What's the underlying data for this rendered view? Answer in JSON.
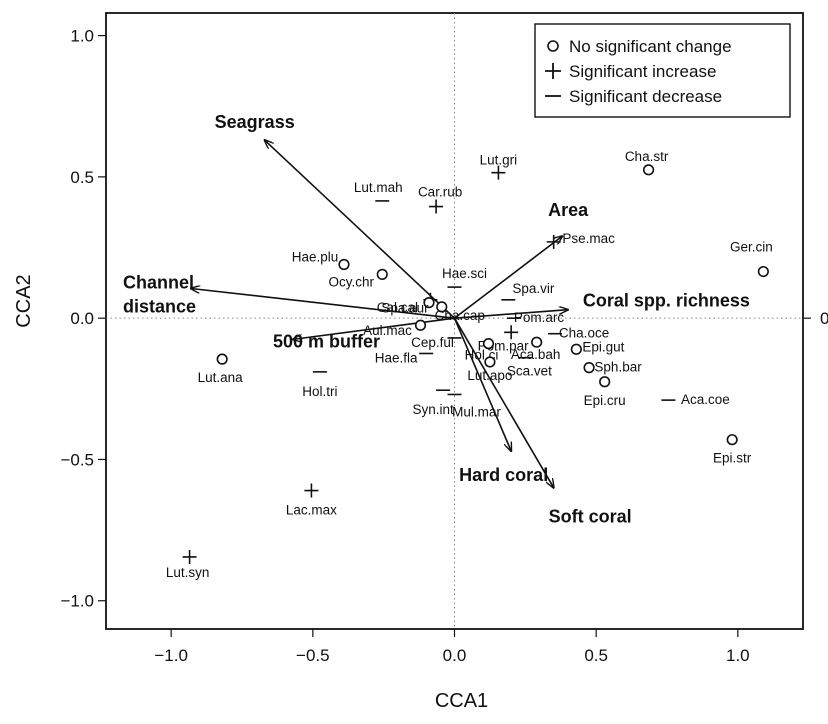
{
  "chart_data": {
    "type": "scatter",
    "xlabel": "CCA1",
    "ylabel": "CCA2",
    "xlim": [
      -1.23,
      1.23
    ],
    "ylim": [
      -1.1,
      1.08
    ],
    "x_ticks": [
      -1.0,
      -0.5,
      0.0,
      0.5,
      1.0
    ],
    "y_ticks": [
      -1.0,
      -0.5,
      0.0,
      0.5,
      1.0
    ],
    "x_tick_labels": [
      "−1.0",
      "−0.5",
      "0.0",
      "0.5",
      "1.0"
    ],
    "y_tick_labels": [
      "−1.0",
      "−0.5",
      "0.0",
      "0.5",
      "1.0"
    ],
    "right_axis_tick": {
      "y": 0.0,
      "label": "0"
    },
    "reference_lines": {
      "x": 0,
      "y": 0,
      "style": "dotted"
    },
    "legend": {
      "position": "top-right",
      "entries": [
        {
          "symbol": "circle",
          "label": "No significant change"
        },
        {
          "symbol": "plus",
          "label": "Significant increase"
        },
        {
          "symbol": "minus",
          "label": "Significant decrease"
        }
      ]
    },
    "species": [
      {
        "name": "Lut.gri",
        "x": 0.155,
        "y": 0.515,
        "status": "plus"
      },
      {
        "name": "Cha.str",
        "x": 0.685,
        "y": 0.525,
        "status": "circle"
      },
      {
        "name": "Lut.mah",
        "x": -0.255,
        "y": 0.415,
        "status": "minus"
      },
      {
        "name": "Car.rub",
        "x": -0.065,
        "y": 0.395,
        "status": "plus"
      },
      {
        "name": "Pse.mac",
        "x": 0.35,
        "y": 0.27,
        "status": "plus"
      },
      {
        "name": "Ger.cin",
        "x": 1.09,
        "y": 0.165,
        "status": "circle"
      },
      {
        "name": "Hae.plu",
        "x": -0.39,
        "y": 0.19,
        "status": "circle"
      },
      {
        "name": "Ocy.chr",
        "x": -0.255,
        "y": 0.155,
        "status": "circle"
      },
      {
        "name": "Hae.sci",
        "x": 0.0,
        "y": 0.11,
        "status": "minus"
      },
      {
        "name": "Cal.cal",
        "x": -0.085,
        "y": 0.065,
        "status": "plus"
      },
      {
        "name": "Spa.vir",
        "x": 0.19,
        "y": 0.065,
        "status": "minus"
      },
      {
        "name": "Spa.aur",
        "x": -0.09,
        "y": 0.055,
        "status": "circle"
      },
      {
        "name": "Cha.cap",
        "x": -0.045,
        "y": 0.04,
        "status": "circle"
      },
      {
        "name": "Pom.arc",
        "x": 0.21,
        "y": 0.0,
        "status": "minus"
      },
      {
        "name": "Aul.mac",
        "x": -0.12,
        "y": -0.025,
        "status": "circle"
      },
      {
        "name": "Pom.par",
        "x": 0.2,
        "y": -0.05,
        "status": "plus"
      },
      {
        "name": "Cha.oce",
        "x": 0.355,
        "y": -0.055,
        "status": "minus"
      },
      {
        "name": "Cep.ful",
        "x": 0.0,
        "y": -0.07,
        "status": "minus"
      },
      {
        "name": "Hol.ci",
        "x": 0.12,
        "y": -0.09,
        "status": "circle"
      },
      {
        "name": "Aca.bah",
        "x": 0.29,
        "y": -0.085,
        "status": "circle"
      },
      {
        "name": "Epi.gut",
        "x": 0.43,
        "y": -0.11,
        "status": "circle"
      },
      {
        "name": "Hae.fla",
        "x": -0.1,
        "y": -0.125,
        "status": "minus"
      },
      {
        "name": "Lut.apo",
        "x": 0.125,
        "y": -0.155,
        "status": "circle"
      },
      {
        "name": "Sca.vet",
        "x": 0.25,
        "y": -0.14,
        "status": "minus"
      },
      {
        "name": "Sph.bar",
        "x": 0.475,
        "y": -0.175,
        "status": "circle"
      },
      {
        "name": "Lut.ana",
        "x": -0.82,
        "y": -0.145,
        "status": "circle"
      },
      {
        "name": "Hol.tri",
        "x": -0.475,
        "y": -0.19,
        "status": "minus"
      },
      {
        "name": "Epi.cru",
        "x": 0.53,
        "y": -0.225,
        "status": "circle"
      },
      {
        "name": "Syn.int",
        "x": -0.04,
        "y": -0.255,
        "status": "minus"
      },
      {
        "name": "Mul.mar",
        "x": 0.0,
        "y": -0.27,
        "status": "minus"
      },
      {
        "name": "Aca.coe",
        "x": 0.755,
        "y": -0.29,
        "status": "minus"
      },
      {
        "name": "Epi.str",
        "x": 0.98,
        "y": -0.43,
        "status": "circle"
      },
      {
        "name": "Lac.max",
        "x": -0.505,
        "y": -0.61,
        "status": "plus"
      },
      {
        "name": "Lut.syn",
        "x": -0.935,
        "y": -0.845,
        "status": "plus"
      }
    ],
    "vectors": [
      {
        "name": "Seagrass",
        "x": -0.67,
        "y": 0.63
      },
      {
        "name": "Channel\ndistance",
        "x": -0.93,
        "y": 0.105
      },
      {
        "name": "500 m buffer",
        "x": -0.57,
        "y": -0.075
      },
      {
        "name": "Area",
        "x": 0.38,
        "y": 0.29
      },
      {
        "name": "Coral spp. richness",
        "x": 0.4,
        "y": 0.03
      },
      {
        "name": "Hard coral",
        "x": 0.2,
        "y": -0.47
      },
      {
        "name": "Soft coral",
        "x": 0.35,
        "y": -0.6
      }
    ]
  }
}
